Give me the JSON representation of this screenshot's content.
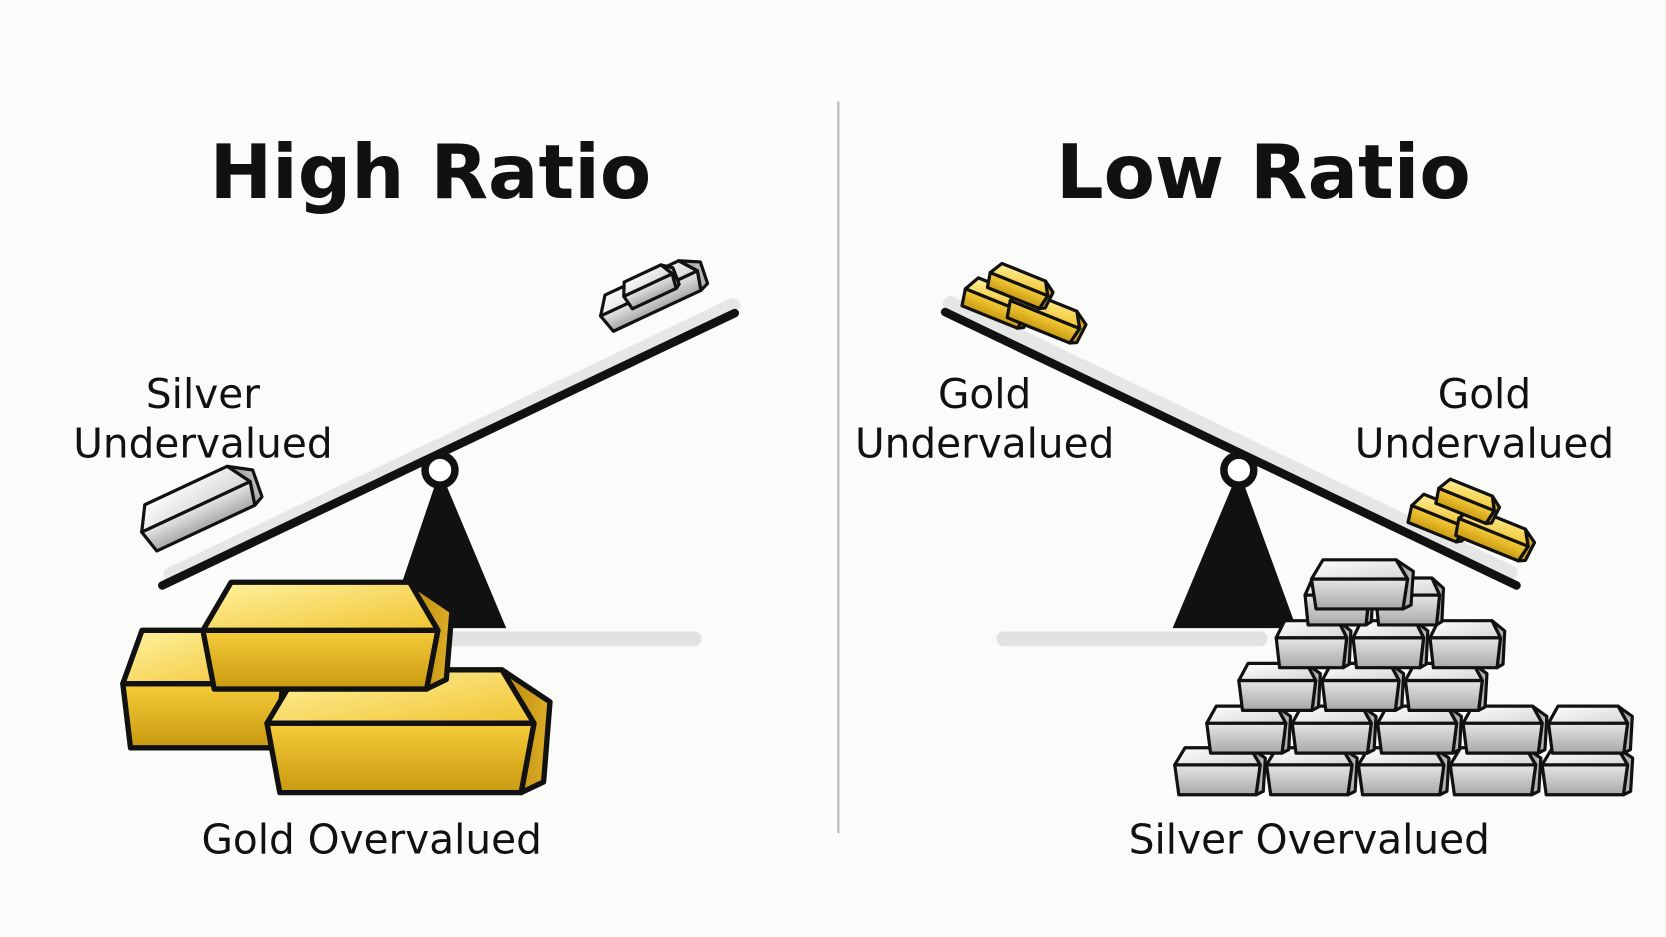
{
  "left": {
    "title": "High Ratio",
    "side_label_line1": "Silver",
    "side_label_line2": "Undervalued",
    "bottom_label": "Gold Overvalued"
  },
  "right": {
    "title": "Low Ratio",
    "left_label_line1": "Gold",
    "left_label_line2": "Undervalued",
    "right_label_line1": "Gold",
    "right_label_line2": "Undervalued",
    "bottom_label": "Silver Overvalued"
  },
  "colors": {
    "gold": "#e8b820",
    "silver": "#c8c8c8",
    "outline": "#111111",
    "background": "#fbfbfa"
  }
}
